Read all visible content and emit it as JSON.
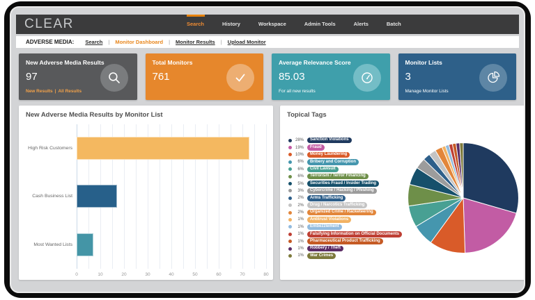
{
  "colors": {
    "accent_orange": "#ED8B33",
    "nav_bg": "#3B3B3C",
    "page_bg": "#D3D4D6",
    "panel_bg": "#FFFFFF"
  },
  "nav": {
    "logo": "CLEAR",
    "items": [
      {
        "label": "Search",
        "active": true
      },
      {
        "label": "History",
        "active": false
      },
      {
        "label": "Workspace",
        "active": false
      },
      {
        "label": "Admin Tools",
        "active": false
      },
      {
        "label": "Alerts",
        "active": false
      },
      {
        "label": "Batch",
        "active": false
      }
    ]
  },
  "submenu": {
    "label": "ADVERSE MEDIA:",
    "separator": "|",
    "links": [
      {
        "label": "Search",
        "active": false
      },
      {
        "label": "Monitor Dashboard",
        "active": true
      },
      {
        "label": "Monitor Results",
        "active": false
      },
      {
        "label": "Upload Monitor",
        "active": false
      }
    ]
  },
  "cards": [
    {
      "title": "New Adverse Media Results",
      "value": "97",
      "links": [
        "New Results",
        "All Results"
      ],
      "link_separator": "|",
      "icon": "magnifier-icon",
      "bg": "#58595B",
      "circle_bg": "#7A7C7E"
    },
    {
      "title": "Total Monitors",
      "value": "761",
      "icon": "check-icon",
      "bg": "#E6872C",
      "circle_bg": "#EDAE72"
    },
    {
      "title": "Average Relevance Score",
      "value": "85.03",
      "subtitle": "For all new results",
      "icon": "gauge-icon",
      "bg": "#3F9FAB",
      "circle_bg": "#74BDC6"
    },
    {
      "title": "Monitor Lists",
      "value": "3",
      "subtitle": "Manage Monitor Lists",
      "icon": "pie-icon",
      "bg": "#2E6089",
      "circle_bg": "#5E86A5"
    }
  ],
  "chart_data": [
    {
      "type": "bar",
      "orientation": "horizontal",
      "title": "New Adverse Media Results by Monitor List",
      "categories": [
        "High Risk Customers",
        "Cash Business List",
        "Most Wanted Lists"
      ],
      "values": [
        73,
        17,
        7
      ],
      "bar_colors": [
        "#F4B860",
        "#27608A",
        "#4495A6"
      ],
      "xlabel": "",
      "ylabel": "",
      "xlim": [
        0,
        80
      ],
      "xticks": [
        0,
        10,
        20,
        30,
        40,
        50,
        60,
        70,
        80
      ],
      "gridline_step": 5,
      "grid": true,
      "legend_position": "none"
    },
    {
      "type": "pie",
      "title": "Topical Tags",
      "unit": "%",
      "start_angle": "top",
      "direction": "clockwise",
      "legend_position": "left",
      "labels": [
        "Sanction Violations",
        "Fraud",
        "Money Laundering",
        "Bribery and Corruption",
        "Civil Lawsuit",
        "Terrorism / Terror Financing",
        "Securities Fraud / Insider Trading",
        "Cybercrime / Hacking / Phishing",
        "Arms Trafficking",
        "Drug / Narcotics Trafficking",
        "Organized Crime / Racketeering",
        "Antitrust Violations",
        "Embezzlement",
        "Falsifying Information on Official Documents",
        "Pharmaceutical Product Trafficking",
        "Robbery / Theft",
        "War Crimes"
      ],
      "values": [
        28,
        19,
        10,
        6,
        6,
        6,
        5,
        3,
        2,
        2,
        2,
        1,
        1,
        1,
        1,
        1,
        1
      ],
      "colors": [
        "#1F3A5F",
        "#C25CA4",
        "#D95B29",
        "#4596AE",
        "#48A093",
        "#6E8F49",
        "#16506B",
        "#9C9C9C",
        "#2E5F8A",
        "#C4C4C4",
        "#E2863B",
        "#F2B263",
        "#92BBDE",
        "#BE3F34",
        "#C55A24",
        "#5B2D66",
        "#7D7A3C"
      ]
    }
  ]
}
